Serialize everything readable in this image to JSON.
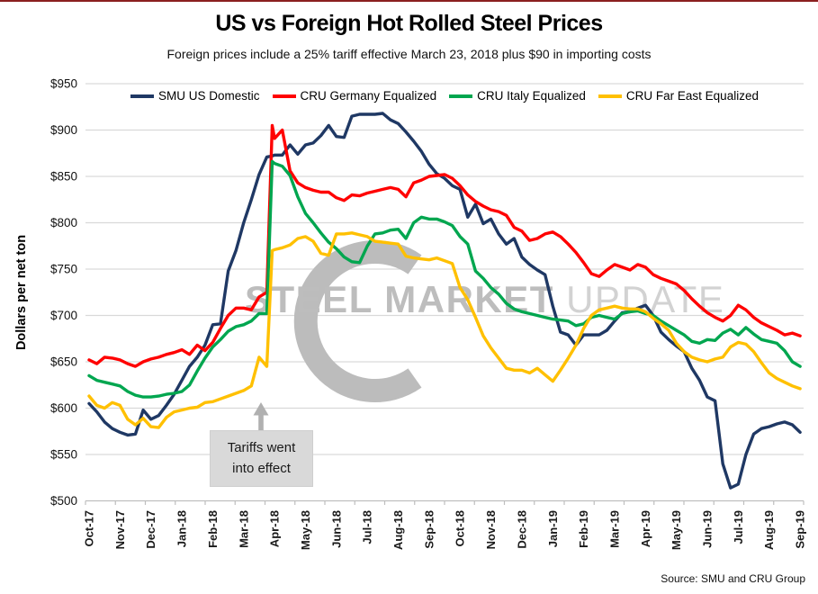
{
  "header": {
    "title": "US vs Foreign Hot Rolled Steel Prices",
    "subtitle": "Foreign prices include a 25% tariff effective March 23, 2018 plus $90 in importing costs"
  },
  "source_note": "Source: SMU and CRU Group",
  "annotation": {
    "line1": "Tariffs went",
    "line2": "into effect"
  },
  "watermark": {
    "bold_text": "STEEL MARKET",
    "light_text": "UPDATE"
  },
  "colors": {
    "us_domestic": "#1f3864",
    "germany": "#ff0000",
    "italy": "#00a64f",
    "far_east": "#ffc000",
    "gridline": "#d9d9d9",
    "axis": "#bfbfbf",
    "annotation_bg": "#d9d9d9",
    "arrow": "#b0b0b0",
    "watermark_bold": "#bdbdbd",
    "watermark_light": "#d2d2d2"
  },
  "chart_data": {
    "type": "line",
    "title": "US vs Foreign Hot Rolled Steel Prices",
    "ylabel": "Dollars per net ton",
    "ylim": [
      500,
      950
    ],
    "y_tick_labels": [
      "$500",
      "$550",
      "$600",
      "$650",
      "$700",
      "$750",
      "$800",
      "$850",
      "$900",
      "$950"
    ],
    "x_tick_labels": [
      "Oct-17",
      "Nov-17",
      "Dec-17",
      "Jan-18",
      "Feb-18",
      "Mar-18",
      "Apr-18",
      "May-18",
      "Jun-18",
      "Jul-18",
      "Aug-18",
      "Sep-18",
      "Oct-18",
      "Nov-18",
      "Dec-18",
      "Jan-19",
      "Feb-19",
      "Mar-19",
      "Apr-19",
      "May-19",
      "Jun-19",
      "Jul-19",
      "Aug-19",
      "Sep-19"
    ],
    "x_unit": "weeks since Oct-2017 (4 per month; extra point at tariff jump)",
    "x_weeks": [
      0,
      1,
      2,
      3,
      4,
      5,
      6,
      7,
      8,
      9,
      10,
      11,
      12,
      13,
      14,
      15,
      16,
      17,
      18,
      19,
      20,
      21,
      22,
      23,
      23.7,
      24,
      25,
      26,
      27,
      28,
      29,
      30,
      31,
      32,
      33,
      34,
      35,
      36,
      37,
      38,
      39,
      40,
      41,
      42,
      43,
      44,
      45,
      46,
      47,
      48,
      49,
      50,
      51,
      52,
      53,
      54,
      55,
      56,
      57,
      58,
      59,
      60,
      61,
      62,
      63,
      64,
      65,
      66,
      67,
      68,
      69,
      70,
      71,
      72,
      73,
      74,
      75,
      76,
      77,
      78,
      79,
      80,
      81,
      82,
      83,
      84,
      85,
      86,
      87,
      88,
      89,
      90,
      91,
      92
    ],
    "grid": true,
    "legend_position": "top",
    "series": [
      {
        "name": "SMU US Domestic",
        "color": "#1f3864",
        "values": [
          605,
          596,
          585,
          578,
          574,
          571,
          572,
          598,
          588,
          592,
          603,
          615,
          630,
          645,
          655,
          668,
          690,
          691,
          748,
          770,
          800,
          825,
          852,
          871,
          872,
          873,
          873,
          884,
          874,
          884,
          886,
          894,
          905,
          893,
          892,
          915,
          917,
          917,
          917,
          918,
          911,
          907,
          898,
          888,
          877,
          863,
          853,
          848,
          840,
          836,
          806,
          820,
          799,
          804,
          788,
          777,
          783,
          763,
          755,
          749,
          744,
          710,
          682,
          679,
          668,
          679,
          679,
          679,
          684,
          694,
          703,
          704,
          708,
          711,
          700,
          682,
          674,
          667,
          661,
          643,
          630,
          612,
          608,
          540,
          514,
          518,
          550,
          572,
          578,
          580,
          583,
          585,
          582,
          574
        ]
      },
      {
        "name": "CRU Germany Equalized",
        "color": "#ff0000",
        "values": [
          652,
          648,
          655,
          654,
          652,
          648,
          645,
          650,
          653,
          655,
          658,
          660,
          663,
          658,
          668,
          662,
          671,
          686,
          700,
          708,
          708,
          706,
          720,
          725,
          905,
          891,
          900,
          856,
          843,
          838,
          835,
          833,
          833,
          827,
          824,
          830,
          829,
          832,
          834,
          836,
          838,
          836,
          828,
          843,
          846,
          850,
          851,
          852,
          848,
          840,
          830,
          823,
          818,
          814,
          812,
          808,
          795,
          791,
          781,
          783,
          788,
          790,
          785,
          777,
          768,
          757,
          745,
          742,
          749,
          755,
          752,
          749,
          755,
          752,
          744,
          740,
          737,
          734,
          727,
          718,
          710,
          703,
          698,
          694,
          700,
          711,
          706,
          698,
          692,
          688,
          684,
          679,
          681,
          678
        ]
      },
      {
        "name": "CRU Italy Equalized",
        "color": "#00a64f",
        "values": [
          635,
          630,
          628,
          626,
          624,
          618,
          614,
          612,
          612,
          613,
          615,
          616,
          618,
          625,
          640,
          654,
          666,
          674,
          683,
          688,
          690,
          694,
          702,
          702,
          866,
          864,
          861,
          851,
          828,
          810,
          800,
          789,
          779,
          772,
          763,
          758,
          757,
          775,
          788,
          789,
          792,
          793,
          783,
          800,
          806,
          804,
          804,
          801,
          797,
          785,
          777,
          748,
          740,
          730,
          723,
          713,
          707,
          704,
          702,
          700,
          698,
          696,
          695,
          694,
          689,
          691,
          698,
          700,
          698,
          696,
          702,
          704,
          705,
          702,
          700,
          694,
          689,
          684,
          679,
          672,
          670,
          674,
          673,
          681,
          685,
          679,
          687,
          680,
          674,
          672,
          670,
          662,
          650,
          645
        ]
      },
      {
        "name": "CRU Far East Equalized",
        "color": "#ffc000",
        "values": [
          613,
          603,
          600,
          606,
          603,
          588,
          582,
          589,
          580,
          579,
          590,
          596,
          598,
          600,
          601,
          606,
          607,
          610,
          613,
          616,
          619,
          624,
          655,
          645,
          770,
          771,
          773,
          776,
          783,
          785,
          780,
          767,
          765,
          788,
          788,
          789,
          787,
          785,
          780,
          779,
          778,
          777,
          764,
          762,
          761,
          760,
          762,
          759,
          756,
          730,
          717,
          698,
          678,
          665,
          654,
          643,
          641,
          641,
          638,
          643,
          636,
          629,
          641,
          654,
          668,
          686,
          700,
          706,
          708,
          710,
          708,
          707,
          707,
          704,
          697,
          691,
          684,
          670,
          661,
          655,
          652,
          650,
          653,
          655,
          666,
          671,
          669,
          661,
          649,
          638,
          632,
          628,
          624,
          621
        ]
      }
    ]
  }
}
